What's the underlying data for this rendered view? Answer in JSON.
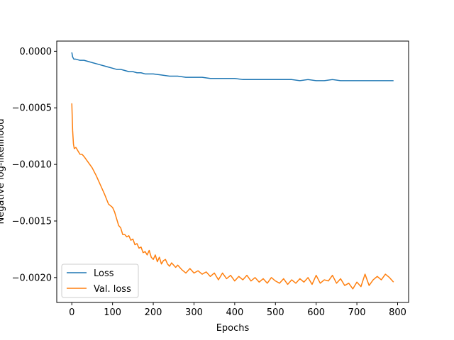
{
  "chart_data": {
    "type": "line",
    "title": "",
    "xlabel": "Epochs",
    "ylabel": "Negative log-likelihood",
    "xlim": [
      -37,
      827
    ],
    "ylim": [
      -0.00222,
      9e-05
    ],
    "xticks": [
      0,
      100,
      200,
      300,
      400,
      500,
      600,
      700,
      800
    ],
    "xtick_labels": [
      "0",
      "100",
      "200",
      "300",
      "400",
      "500",
      "600",
      "700",
      "800"
    ],
    "yticks": [
      0.0,
      -0.0005,
      -0.001,
      -0.0015,
      -0.002
    ],
    "ytick_labels": [
      "0.0000",
      "−0.0005",
      "−0.0010",
      "−0.0015",
      "−0.0020"
    ],
    "grid": false,
    "legend": "lower-left",
    "series": [
      {
        "name": "Loss",
        "color": "#1f77b4",
        "x": [
          0,
          2,
          5,
          10,
          20,
          30,
          40,
          50,
          60,
          70,
          80,
          90,
          100,
          110,
          120,
          130,
          140,
          150,
          160,
          170,
          180,
          190,
          200,
          220,
          240,
          260,
          280,
          300,
          320,
          340,
          360,
          380,
          400,
          420,
          440,
          460,
          480,
          500,
          520,
          540,
          560,
          580,
          600,
          620,
          640,
          660,
          680,
          700,
          720,
          740,
          760,
          780,
          790
        ],
        "y": [
          -1e-05,
          -5e-05,
          -7e-05,
          -7e-05,
          -8e-05,
          -8e-05,
          -9e-05,
          -0.0001,
          -0.00011,
          -0.00012,
          -0.00013,
          -0.00014,
          -0.00015,
          -0.00016,
          -0.00016,
          -0.00017,
          -0.00018,
          -0.00018,
          -0.00019,
          -0.00019,
          -0.0002,
          -0.0002,
          -0.0002,
          -0.00021,
          -0.00022,
          -0.00022,
          -0.00023,
          -0.00023,
          -0.00023,
          -0.00024,
          -0.00024,
          -0.00024,
          -0.00024,
          -0.00025,
          -0.00025,
          -0.00025,
          -0.00025,
          -0.00025,
          -0.00025,
          -0.00025,
          -0.00026,
          -0.00025,
          -0.00026,
          -0.00026,
          -0.00025,
          -0.00026,
          -0.00026,
          -0.00026,
          -0.00026,
          -0.00026,
          -0.00026,
          -0.00026,
          -0.00026
        ]
      },
      {
        "name": "Val. loss",
        "color": "#ff7f0e",
        "x": [
          0,
          2,
          4,
          6,
          10,
          15,
          20,
          25,
          30,
          40,
          50,
          60,
          70,
          80,
          90,
          100,
          105,
          110,
          115,
          120,
          125,
          130,
          135,
          140,
          145,
          150,
          155,
          160,
          165,
          170,
          175,
          180,
          185,
          190,
          195,
          200,
          205,
          210,
          215,
          220,
          225,
          230,
          235,
          240,
          245,
          250,
          255,
          260,
          270,
          280,
          290,
          300,
          310,
          320,
          330,
          340,
          350,
          360,
          370,
          380,
          390,
          400,
          410,
          420,
          430,
          440,
          450,
          460,
          470,
          480,
          490,
          500,
          510,
          520,
          530,
          540,
          550,
          560,
          570,
          580,
          590,
          600,
          610,
          620,
          630,
          640,
          650,
          660,
          670,
          680,
          690,
          700,
          710,
          720,
          730,
          740,
          750,
          760,
          770,
          780,
          790
        ],
        "y": [
          -0.00046,
          -0.0007,
          -0.00082,
          -0.00086,
          -0.00085,
          -0.00088,
          -0.00091,
          -0.00091,
          -0.00093,
          -0.00098,
          -0.00103,
          -0.0011,
          -0.00118,
          -0.00126,
          -0.00135,
          -0.00138,
          -0.00142,
          -0.00148,
          -0.00154,
          -0.00156,
          -0.00162,
          -0.00162,
          -0.00164,
          -0.00163,
          -0.00167,
          -0.00166,
          -0.00171,
          -0.0017,
          -0.00174,
          -0.00173,
          -0.00178,
          -0.00177,
          -0.0018,
          -0.00176,
          -0.00182,
          -0.00184,
          -0.0018,
          -0.00186,
          -0.00182,
          -0.00188,
          -0.00185,
          -0.00184,
          -0.00188,
          -0.0019,
          -0.00187,
          -0.00189,
          -0.00191,
          -0.00189,
          -0.00193,
          -0.00196,
          -0.00192,
          -0.00196,
          -0.00194,
          -0.00197,
          -0.00195,
          -0.00199,
          -0.00196,
          -0.00202,
          -0.00196,
          -0.00201,
          -0.00198,
          -0.00203,
          -0.00199,
          -0.00202,
          -0.00198,
          -0.00203,
          -0.002,
          -0.00204,
          -0.00201,
          -0.00205,
          -0.002,
          -0.00203,
          -0.00205,
          -0.00201,
          -0.00206,
          -0.00202,
          -0.00205,
          -0.00201,
          -0.00204,
          -0.002,
          -0.00206,
          -0.00198,
          -0.00205,
          -0.00202,
          -0.00203,
          -0.00198,
          -0.00205,
          -0.00201,
          -0.00207,
          -0.00205,
          -0.0021,
          -0.00204,
          -0.00208,
          -0.00197,
          -0.00207,
          -0.00202,
          -0.00199,
          -0.00202,
          -0.00197,
          -0.002,
          -0.00204
        ]
      }
    ]
  }
}
